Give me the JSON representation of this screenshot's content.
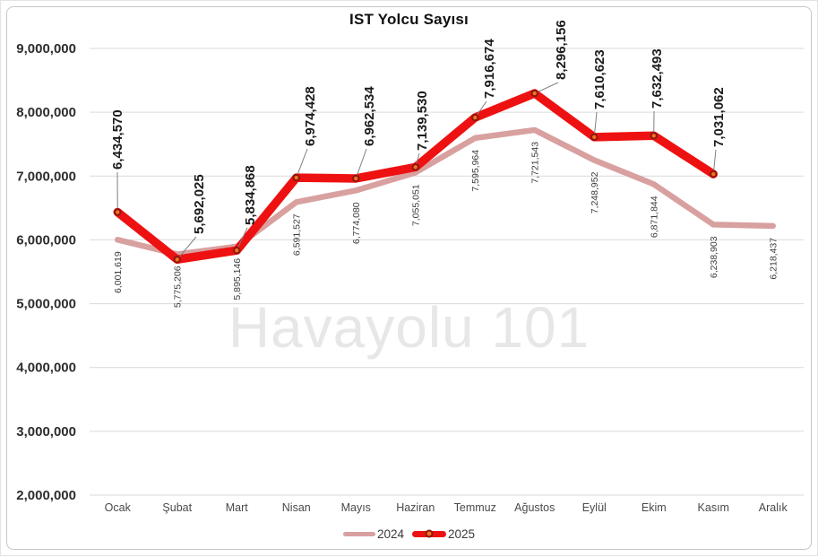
{
  "chart_data": {
    "type": "line",
    "title": "IST Yolcu Sayısı",
    "categories": [
      "Ocak",
      "Şubat",
      "Mart",
      "Nisan",
      "Mayıs",
      "Haziran",
      "Temmuz",
      "Ağustos",
      "Eylül",
      "Ekim",
      "Kasım",
      "Aralık"
    ],
    "series": [
      {
        "name": "2024",
        "color": "#D9A0A0",
        "values": [
          6001619,
          5775206,
          5895146,
          6591527,
          6774080,
          7055051,
          7595964,
          7721543,
          7248952,
          6871844,
          6238903,
          6218437
        ],
        "data_labels": [
          "6,001,619",
          "5,775,206",
          "5,895,146",
          "6,591,527",
          "6,774,080",
          "7,055,051",
          "7,595,964",
          "7,721,543",
          "7,248,952",
          "6,871,844",
          "6,238,903",
          "6,218,437"
        ]
      },
      {
        "name": "2025",
        "color": "#EE1111",
        "marker_fill": "#F4711D",
        "marker_stroke": "#8A1710",
        "values": [
          6434570,
          5692025,
          5834868,
          6974428,
          6962534,
          7139530,
          7916674,
          8296156,
          7610623,
          7632493,
          7031062
        ],
        "data_labels": [
          "6,434,570",
          "5,692,025",
          "5,834,868",
          "6,974,428",
          "6,962,534",
          "7,139,530",
          "7,916,674",
          "8,296,156",
          "7,610,623",
          "7,632,493",
          "7,031,062"
        ]
      }
    ],
    "ylim": [
      2000000,
      9000000
    ],
    "ytick_step": 1000000,
    "ytick_labels": [
      "2,000,000",
      "3,000,000",
      "4,000,000",
      "5,000,000",
      "6,000,000",
      "7,000,000",
      "8,000,000",
      "9,000,000"
    ],
    "grid": "horizontal",
    "grid_color": "#d9d9d9",
    "leader_line_color": "#7f7f7f",
    "legend_position": "bottom"
  },
  "watermark": {
    "text": "Havayolu 101"
  }
}
